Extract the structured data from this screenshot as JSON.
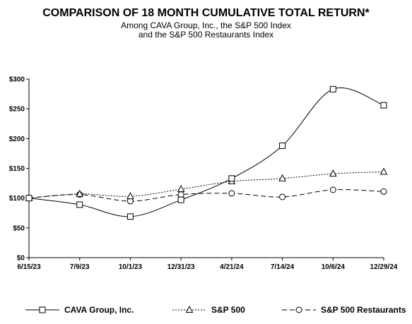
{
  "header": {
    "title": "COMPARISON OF 18 MONTH CUMULATIVE TOTAL RETURN*",
    "subtitle_line1": "Among CAVA Group, Inc., the S&P 500 Index",
    "subtitle_line2": "and the S&P 500 Restaurants Index"
  },
  "chart_data": {
    "type": "line",
    "title": "COMPARISON OF 18 MONTH CUMULATIVE TOTAL RETURN*",
    "subtitle": "Among CAVA Group, Inc., the S&P 500 Index and the S&P 500 Restaurants Index",
    "categories": [
      "6/15/23",
      "7/9/23",
      "10/1/23",
      "12/31/23",
      "4/21/24",
      "7/14/24",
      "10/6/24",
      "12/29/24"
    ],
    "ylim": [
      0,
      300
    ],
    "yticks": [
      0,
      50,
      100,
      150,
      200,
      250,
      300
    ],
    "ytick_labels": [
      "$0",
      "$50",
      "$100",
      "$150",
      "$200",
      "$250",
      "$300"
    ],
    "grid": false,
    "legend_position": "bottom",
    "series": [
      {
        "name": "CAVA Group, Inc.",
        "marker": "square",
        "dash": "solid",
        "values": [
          100,
          89,
          69,
          97,
          133,
          188,
          283,
          256
        ]
      },
      {
        "name": "S&P 500",
        "marker": "triangle",
        "dash": "dotted",
        "values": [
          100,
          107,
          103,
          115,
          128,
          133,
          141,
          144
        ]
      },
      {
        "name": "S&P 500 Restaurants",
        "marker": "circle",
        "dash": "dashed",
        "values": [
          100,
          106,
          95,
          106,
          108,
          102,
          114,
          111
        ]
      }
    ]
  },
  "colors": {
    "line": "#000000",
    "background": "#ffffff"
  }
}
